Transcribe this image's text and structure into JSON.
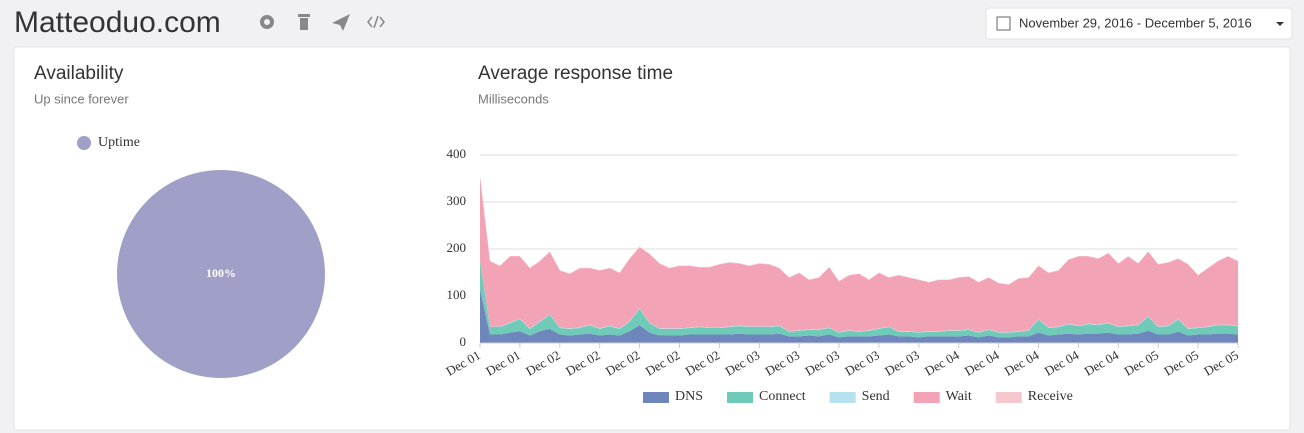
{
  "header": {
    "title": "Matteoduo.com",
    "date_range": "November 29, 2016 - December 5, 2016"
  },
  "chart_data": [
    {
      "type": "pie",
      "title": "Availability",
      "subtitle": "Up since forever",
      "categories": [
        "Uptime"
      ],
      "values": [
        100
      ],
      "value_labels": [
        "100%"
      ],
      "colors": [
        "#9f9fc8"
      ],
      "legend": "top-left"
    },
    {
      "type": "area",
      "stacked": true,
      "title": "Average response time",
      "subtitle": "Milliseconds",
      "ylim": [
        0,
        400
      ],
      "yticks": [
        0,
        100,
        200,
        300,
        400
      ],
      "grid": true,
      "legend": "bottom",
      "categories": [
        "Dec 01",
        null,
        null,
        null,
        "Dec 01",
        null,
        null,
        null,
        "Dec 02",
        null,
        null,
        null,
        "Dec 02",
        null,
        null,
        null,
        "Dec 02",
        null,
        null,
        null,
        "Dec 02",
        null,
        null,
        null,
        "Dec 02",
        null,
        null,
        null,
        "Dec 03",
        null,
        null,
        null,
        "Dec 03",
        null,
        null,
        null,
        "Dec 03",
        null,
        null,
        null,
        "Dec 03",
        null,
        null,
        null,
        "Dec 03",
        null,
        null,
        null,
        "Dec 04",
        null,
        null,
        null,
        "Dec 04",
        null,
        null,
        null,
        "Dec 04",
        null,
        null,
        null,
        "Dec 04",
        null,
        null,
        null,
        "Dec 04",
        null,
        null,
        null,
        "Dec 05",
        null,
        null,
        null,
        "Dec 05",
        null,
        null,
        null,
        "Dec 05"
      ],
      "series": [
        {
          "name": "DNS",
          "color": "#6f86bd",
          "values": [
            115,
            18,
            18,
            22,
            25,
            16,
            25,
            30,
            18,
            16,
            18,
            20,
            16,
            18,
            16,
            25,
            38,
            22,
            16,
            16,
            16,
            18,
            18,
            18,
            18,
            18,
            20,
            18,
            18,
            18,
            20,
            14,
            14,
            16,
            14,
            18,
            12,
            14,
            14,
            14,
            16,
            18,
            14,
            14,
            12,
            14,
            14,
            14,
            14,
            16,
            12,
            16,
            12,
            12,
            14,
            14,
            22,
            16,
            18,
            20,
            18,
            20,
            20,
            22,
            18,
            18,
            20,
            26,
            18,
            18,
            24,
            16,
            18,
            18,
            20,
            20,
            18
          ]
        },
        {
          "name": "Connect",
          "color": "#6fcab8",
          "values": [
            60,
            16,
            16,
            20,
            26,
            14,
            20,
            30,
            14,
            14,
            14,
            18,
            14,
            18,
            14,
            20,
            35,
            20,
            14,
            14,
            14,
            14,
            16,
            14,
            14,
            16,
            16,
            16,
            16,
            16,
            16,
            10,
            12,
            12,
            14,
            14,
            10,
            12,
            10,
            12,
            14,
            16,
            10,
            10,
            10,
            10,
            10,
            12,
            12,
            12,
            10,
            12,
            10,
            10,
            10,
            12,
            28,
            16,
            16,
            20,
            18,
            20,
            18,
            20,
            16,
            18,
            18,
            30,
            16,
            18,
            26,
            14,
            14,
            16,
            18,
            18,
            18
          ]
        },
        {
          "name": "Send",
          "color": "#b6e2f0",
          "values": [
            1,
            1,
            1,
            1,
            1,
            1,
            1,
            1,
            1,
            1,
            1,
            1,
            1,
            1,
            1,
            1,
            1,
            1,
            1,
            1,
            1,
            1,
            1,
            1,
            1,
            1,
            1,
            1,
            1,
            1,
            1,
            1,
            1,
            1,
            1,
            1,
            1,
            1,
            1,
            1,
            1,
            1,
            1,
            1,
            1,
            1,
            1,
            1,
            1,
            1,
            1,
            1,
            1,
            1,
            1,
            1,
            1,
            1,
            1,
            1,
            1,
            1,
            1,
            1,
            1,
            1,
            1,
            1,
            1,
            1,
            1,
            1,
            1,
            1,
            1,
            1,
            1
          ]
        },
        {
          "name": "Wait",
          "color": "#f2a3b5",
          "values": [
            178,
            139,
            129,
            141,
            132,
            128,
            128,
            133,
            121,
            116,
            126,
            120,
            123,
            122,
            118,
            133,
            130,
            146,
            138,
            128,
            133,
            131,
            126,
            128,
            134,
            136,
            132,
            129,
            134,
            132,
            122,
            114,
            122,
            105,
            110,
            128,
            108,
            117,
            122,
            107,
            118,
            104,
            119,
            114,
            111,
            104,
            109,
            107,
            112,
            112,
            106,
            110,
            104,
            101,
            112,
            112,
            113,
            116,
            119,
            136,
            147,
            143,
            140,
            148,
            134,
            147,
            130,
            137,
            132,
            134,
            128,
            136,
            111,
            124,
            135,
            145,
            137
          ]
        },
        {
          "name": "Receive",
          "color": "#f7c7cf",
          "values": [
            1,
            1,
            1,
            1,
            1,
            1,
            1,
            1,
            1,
            1,
            1,
            1,
            1,
            1,
            1,
            1,
            1,
            1,
            1,
            1,
            1,
            1,
            1,
            1,
            1,
            1,
            1,
            1,
            1,
            1,
            1,
            1,
            1,
            1,
            1,
            1,
            1,
            1,
            1,
            1,
            1,
            1,
            1,
            1,
            1,
            1,
            1,
            1,
            1,
            1,
            1,
            1,
            1,
            1,
            1,
            1,
            1,
            1,
            1,
            1,
            1,
            1,
            1,
            1,
            1,
            1,
            1,
            1,
            1,
            1,
            1,
            1,
            1,
            1,
            1,
            1,
            1
          ]
        }
      ]
    }
  ]
}
